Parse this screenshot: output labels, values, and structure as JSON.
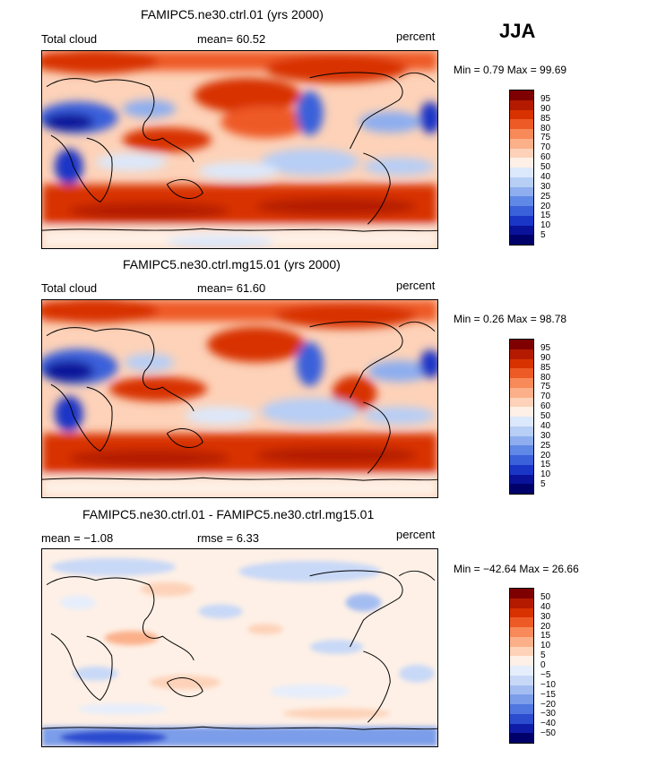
{
  "season": "JJA",
  "panels": [
    {
      "title": "FAMIPC5.ne30.ctrl.01 (yrs 2000)",
      "left_label": "Total cloud",
      "center_label": "mean=  60.52",
      "units": "percent",
      "minmax": "Min =   0.79 Max =  99.69",
      "colorbar_labels": [
        "95",
        "90",
        "85",
        "80",
        "75",
        "70",
        "60",
        "50",
        "40",
        "30",
        "25",
        "20",
        "15",
        "10",
        "5"
      ],
      "colorbar_colors": [
        "#7e0000",
        "#b41a00",
        "#d83200",
        "#ee5a26",
        "#f78a58",
        "#fbb08a",
        "#fdd2b8",
        "#fef0e6",
        "#dce8fb",
        "#b7cef5",
        "#8eaeef",
        "#6088e6",
        "#3a60da",
        "#1a36c6",
        "#0a129a",
        "#00006a"
      ]
    },
    {
      "title": "FAMIPC5.ne30.ctrl.mg15.01 (yrs 2000)",
      "left_label": "Total cloud",
      "center_label": "mean=  61.60",
      "units": "percent",
      "minmax": "Min =   0.26 Max =  98.78",
      "colorbar_labels": [
        "95",
        "90",
        "85",
        "80",
        "75",
        "70",
        "60",
        "50",
        "40",
        "30",
        "25",
        "20",
        "15",
        "10",
        "5"
      ],
      "colorbar_colors": [
        "#7e0000",
        "#b41a00",
        "#d83200",
        "#ee5a26",
        "#f78a58",
        "#fbb08a",
        "#fdd2b8",
        "#fef0e6",
        "#dce8fb",
        "#b7cef5",
        "#8eaeef",
        "#6088e6",
        "#3a60da",
        "#1a36c6",
        "#0a129a",
        "#00006a"
      ]
    },
    {
      "title": "FAMIPC5.ne30.ctrl.01 - FAMIPC5.ne30.ctrl.mg15.01",
      "left_label": "mean =  −1.08",
      "center_label": "rmse =   6.33",
      "units": "percent",
      "minmax": "Min = −42.64 Max =  26.66",
      "colorbar_labels": [
        "50",
        "40",
        "30",
        "20",
        "15",
        "10",
        "5",
        "0",
        "−5",
        "−10",
        "−15",
        "−20",
        "−30",
        "−40",
        "−50"
      ],
      "colorbar_colors": [
        "#7e0000",
        "#b41a00",
        "#d83200",
        "#ee5a26",
        "#f78a58",
        "#fbb08a",
        "#fdd2b8",
        "#fef0e6",
        "#e6eefc",
        "#c8d8f7",
        "#a4bdf1",
        "#7c9de9",
        "#5076df",
        "#2c4ccf",
        "#0e1ca8",
        "#00006a"
      ]
    }
  ]
}
